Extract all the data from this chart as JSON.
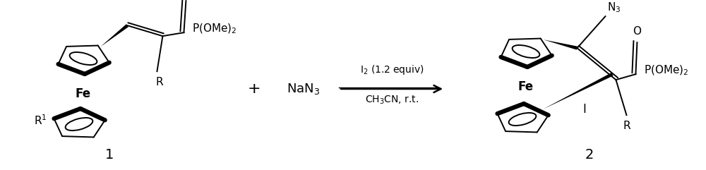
{
  "background_color": "#ffffff",
  "fig_width": 10.0,
  "fig_height": 2.41,
  "dpi": 100,
  "reagent_line1": "I$_2$ (1.2 equiv)",
  "reagent_line2": "CH$_3$CN, r.t.",
  "plus_text": "+",
  "NaN3_text": "NaN$_3$",
  "label1_text": "1",
  "label2_text": "2",
  "font_size_labels": 14,
  "font_size_reagents": 10,
  "font_size_plus": 16,
  "font_size_chem": 11,
  "font_size_group": 10
}
